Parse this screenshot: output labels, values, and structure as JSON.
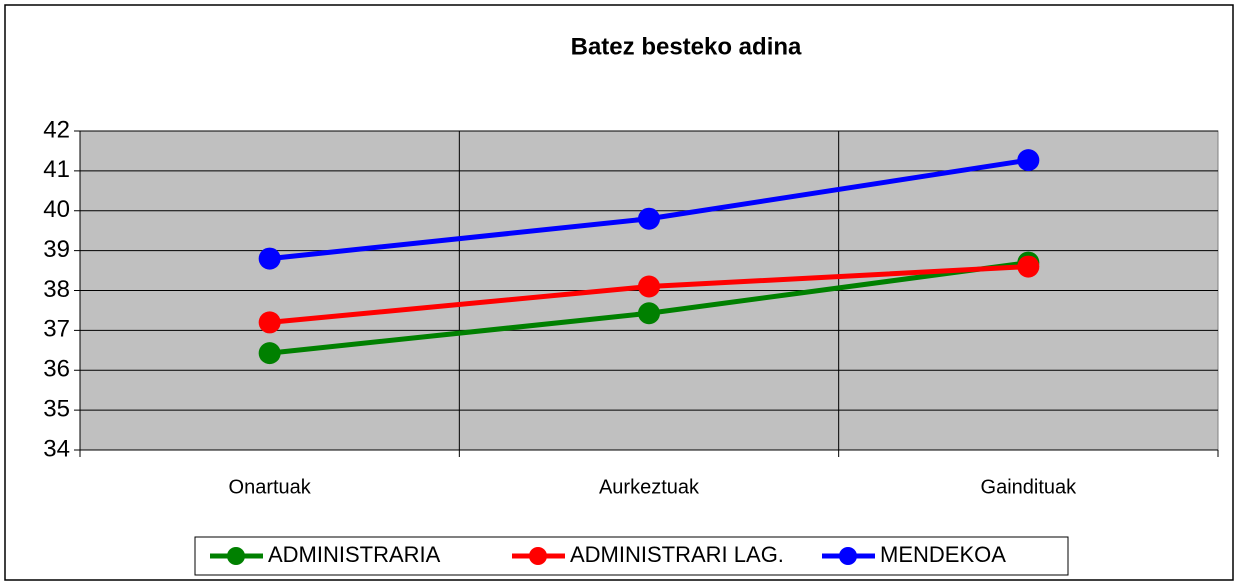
{
  "chart_data": {
    "type": "line",
    "title": "Batez besteko adina",
    "categories": [
      "Onartuak",
      "Aurkeztuak",
      "Gaindituak"
    ],
    "series": [
      {
        "name": "ADMINISTRARIA",
        "color": "#008000",
        "values": [
          36.43,
          37.43,
          38.7
        ]
      },
      {
        "name": "ADMINISTRARI LAG.",
        "color": "#ff0000",
        "values": [
          37.2,
          38.1,
          38.6
        ]
      },
      {
        "name": "MENDEKOA",
        "color": "#0000ff",
        "values": [
          38.8,
          39.8,
          41.27
        ]
      }
    ],
    "ylim": [
      34,
      42
    ],
    "yticks": [
      34,
      35,
      36,
      37,
      38,
      39,
      40,
      41,
      42
    ],
    "grid": true,
    "legend": "bottom",
    "plot_background": "#c0c0c0"
  }
}
